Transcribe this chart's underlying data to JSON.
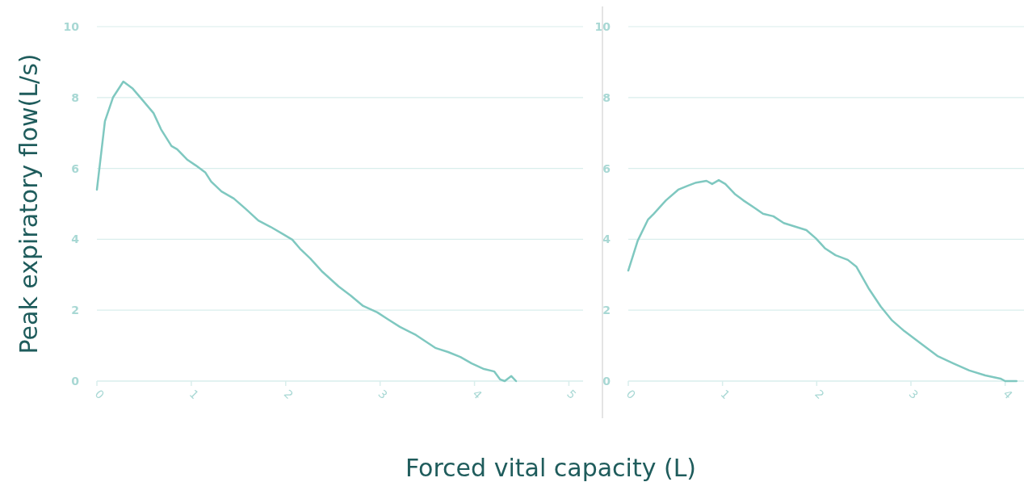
{
  "chart_data": [
    {
      "type": "line",
      "ylabel": "Peak expiratory flow(L/s)",
      "xlabel": "Forced vital capacity (L)",
      "xlim": [
        0,
        5.15
      ],
      "xticks": [
        0,
        1,
        2,
        3,
        4,
        5
      ],
      "ylim": [
        0,
        10
      ],
      "yticks": [
        0,
        2,
        4,
        6,
        8,
        10
      ],
      "grid": "y",
      "series": [
        {
          "color": "#7fc8c0",
          "x": [
            0,
            0.085,
            0.17,
            0.28,
            0.38,
            0.47,
            0.6,
            0.68,
            0.79,
            0.85,
            0.96,
            1.05,
            1.15,
            1.21,
            1.32,
            1.45,
            1.58,
            1.71,
            1.84,
            1.97,
            2.07,
            2.15,
            2.26,
            2.39,
            2.56,
            2.69,
            2.82,
            2.97,
            3.08,
            3.21,
            3.38,
            3.59,
            3.72,
            3.85,
            3.97,
            4.1,
            4.21,
            4.27,
            4.32,
            4.39,
            4.44
          ],
          "values": [
            5.4,
            7.33,
            8.0,
            8.45,
            8.25,
            7.97,
            7.56,
            7.1,
            6.63,
            6.54,
            6.24,
            6.08,
            5.88,
            5.63,
            5.35,
            5.15,
            4.85,
            4.53,
            4.35,
            4.15,
            3.99,
            3.74,
            3.46,
            3.08,
            2.67,
            2.41,
            2.12,
            1.94,
            1.75,
            1.53,
            1.3,
            0.93,
            0.82,
            0.68,
            0.5,
            0.34,
            0.27,
            0.05,
            0,
            0.14,
            0
          ]
        }
      ]
    },
    {
      "type": "line",
      "xlim": [
        0,
        4.2
      ],
      "xticks": [
        0,
        1,
        2,
        3,
        4
      ],
      "ylim": [
        0,
        10
      ],
      "yticks": [
        0,
        2,
        4,
        6,
        8,
        10
      ],
      "grid": "y",
      "series": [
        {
          "color": "#7fc8c0",
          "x": [
            0,
            0.1,
            0.21,
            0.27,
            0.4,
            0.53,
            0.63,
            0.72,
            0.83,
            0.89,
            0.96,
            1.03,
            1.13,
            1.22,
            1.35,
            1.43,
            1.54,
            1.65,
            1.78,
            1.89,
            1.99,
            2.09,
            2.2,
            2.33,
            2.42,
            2.55,
            2.68,
            2.8,
            2.93,
            3.1,
            3.28,
            3.45,
            3.62,
            3.79,
            3.95,
            4.0,
            4.12
          ],
          "values": [
            3.12,
            3.96,
            4.56,
            4.72,
            5.1,
            5.4,
            5.51,
            5.6,
            5.65,
            5.56,
            5.67,
            5.56,
            5.28,
            5.1,
            4.87,
            4.72,
            4.65,
            4.46,
            4.35,
            4.26,
            4.03,
            3.74,
            3.55,
            3.42,
            3.23,
            2.62,
            2.1,
            1.71,
            1.41,
            1.07,
            0.71,
            0.5,
            0.3,
            0.16,
            0.07,
            0,
            0
          ]
        }
      ]
    }
  ]
}
